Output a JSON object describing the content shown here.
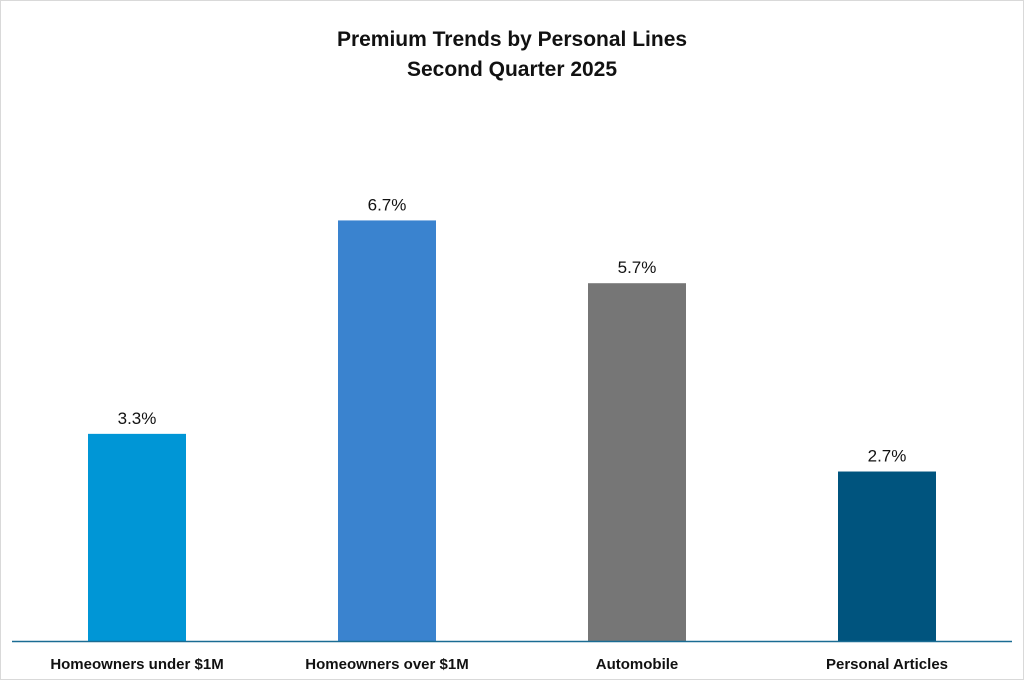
{
  "chart_data": {
    "type": "bar",
    "title": "Premium Trends by Personal Lines",
    "subtitle": "Second Quarter 2025",
    "categories": [
      "Homeowners under $1M",
      "Homeowners over $1M",
      "Automobile",
      "Personal Articles"
    ],
    "values": [
      3.3,
      6.7,
      5.7,
      2.7
    ],
    "data_labels": [
      "3.3%",
      "6.7%",
      "5.7%",
      "2.7%"
    ],
    "colors": [
      "#0096d6",
      "#3a83cf",
      "#767676",
      "#00547e"
    ],
    "axis_color": "#1a6c93",
    "ylim": [
      0,
      8.3
    ],
    "grid": false,
    "legend": "none",
    "xlabel": "",
    "ylabel": ""
  }
}
